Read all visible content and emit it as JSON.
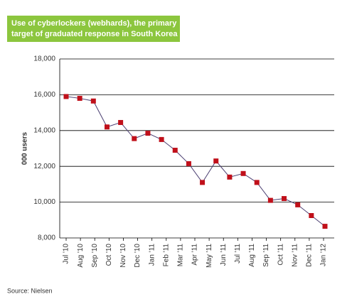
{
  "chart_data": {
    "type": "line",
    "title": "Use of cyberlockers (webhards), the primary target of graduated response in South Korea",
    "title_lines": [
      "Use of cyberlockers (webhards), the primary",
      "target of graduated response in South Korea"
    ],
    "ylabel": "000 users",
    "source": "Source: Nielsen",
    "categories": [
      "Jul '10",
      "Aug '10",
      "Sep '10",
      "Oct '10",
      "Nov '10",
      "Dec '10",
      "Jan '11",
      "Feb '11",
      "Mar '11",
      "Apr '11",
      "May '11",
      "Jun '11",
      "Jul '11",
      "Aug '11",
      "Sep '11",
      "Oct '11",
      "Nov '11",
      "Dec '11",
      "Jan '12",
      null
    ],
    "series": [
      {
        "name": "000 users",
        "color": "#4b3f72",
        "marker_color": "#c0101a",
        "values": [
          15900,
          15800,
          15650,
          14200,
          14450,
          13550,
          13850,
          13500,
          12900,
          12150,
          11100,
          12300,
          11400,
          11600,
          11100,
          10100,
          10200,
          9850,
          9250,
          8650
        ]
      }
    ],
    "ylim": [
      8000,
      18000
    ],
    "yticks": [
      {
        "value": 8000,
        "label": "8,000"
      },
      {
        "value": 10000,
        "label": "10,000"
      },
      {
        "value": 12000,
        "label": "12,000"
      },
      {
        "value": 14000,
        "label": "14,000"
      },
      {
        "value": 16000,
        "label": "16,000"
      },
      {
        "value": 18000,
        "label": "18,000"
      }
    ],
    "grid": true
  }
}
